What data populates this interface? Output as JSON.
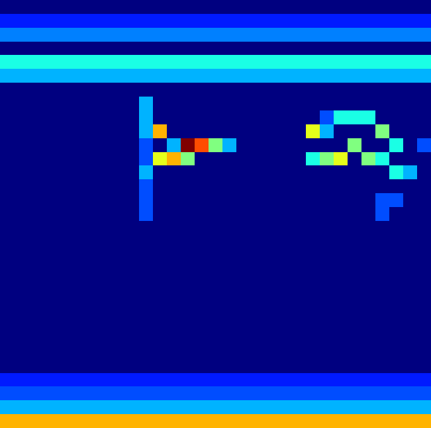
{
  "chart_data": {
    "type": "heatmap",
    "tick_labels": false,
    "xlim": [
      0,
      31
    ],
    "ylim": [
      0,
      31
    ],
    "zlim": [
      0,
      1
    ],
    "cells": [
      [
        0,
        0,
        0,
        0,
        0,
        0,
        0,
        0,
        0,
        0,
        0,
        0,
        0,
        0,
        0,
        0,
        0,
        0,
        0,
        0,
        0,
        0,
        0,
        0,
        0,
        0,
        0,
        0,
        0,
        0,
        0
      ],
      [
        0.15,
        0.15,
        0.15,
        0.15,
        0.15,
        0.15,
        0.15,
        0.15,
        0.15,
        0.15,
        0.15,
        0.15,
        0.15,
        0.15,
        0.15,
        0.15,
        0.15,
        0.15,
        0.15,
        0.15,
        0.15,
        0.15,
        0.15,
        0.15,
        0.15,
        0.15,
        0.15,
        0.15,
        0.15,
        0.15,
        0.15
      ],
      [
        0.25,
        0.25,
        0.25,
        0.25,
        0.25,
        0.25,
        0.25,
        0.25,
        0.25,
        0.25,
        0.25,
        0.25,
        0.25,
        0.25,
        0.25,
        0.25,
        0.25,
        0.25,
        0.25,
        0.25,
        0.25,
        0.25,
        0.25,
        0.25,
        0.25,
        0.25,
        0.25,
        0.25,
        0.25,
        0.25,
        0.25
      ],
      [
        0,
        0,
        0,
        0,
        0,
        0,
        0,
        0,
        0,
        0,
        0,
        0,
        0,
        0,
        0,
        0,
        0,
        0,
        0,
        0,
        0,
        0,
        0,
        0,
        0,
        0,
        0,
        0,
        0,
        0,
        0
      ],
      [
        0.4,
        0.4,
        0.4,
        0.4,
        0.4,
        0.4,
        0.4,
        0.4,
        0.4,
        0.4,
        0.4,
        0.4,
        0.4,
        0.4,
        0.4,
        0.4,
        0.4,
        0.4,
        0.4,
        0.4,
        0.4,
        0.4,
        0.4,
        0.4,
        0.4,
        0.4,
        0.4,
        0.4,
        0.4,
        0.4,
        0.4
      ],
      [
        0.3,
        0.3,
        0.3,
        0.3,
        0.3,
        0.3,
        0.3,
        0.3,
        0.3,
        0.3,
        0.3,
        0.3,
        0.3,
        0.3,
        0.3,
        0.3,
        0.3,
        0.3,
        0.3,
        0.3,
        0.3,
        0.3,
        0.3,
        0.3,
        0.3,
        0.3,
        0.3,
        0.3,
        0.3,
        0.3,
        0.3
      ],
      [
        0,
        0,
        0,
        0,
        0,
        0,
        0,
        0,
        0,
        0,
        0,
        0,
        0,
        0,
        0,
        0,
        0,
        0,
        0,
        0,
        0,
        0,
        0,
        0,
        0,
        0,
        0,
        0,
        0,
        0,
        0
      ],
      [
        0,
        0,
        0,
        0,
        0,
        0,
        0,
        0,
        0,
        0,
        0.3,
        0,
        0,
        0,
        0,
        0,
        0,
        0,
        0,
        0,
        0,
        0,
        0,
        0,
        0,
        0,
        0,
        0,
        0,
        0,
        0
      ],
      [
        0,
        0,
        0,
        0,
        0,
        0,
        0,
        0,
        0,
        0,
        0.3,
        0,
        0,
        0,
        0,
        0,
        0,
        0,
        0,
        0,
        0,
        0,
        0,
        0.2,
        0.4,
        0.4,
        0.4,
        0,
        0,
        0,
        0
      ],
      [
        0,
        0,
        0,
        0,
        0,
        0,
        0,
        0,
        0,
        0,
        0.3,
        0.7,
        0,
        0,
        0,
        0,
        0,
        0,
        0,
        0,
        0,
        0,
        0.6,
        0.3,
        0,
        0,
        0,
        0.5,
        0,
        0,
        0
      ],
      [
        0,
        0,
        0,
        0,
        0,
        0,
        0,
        0,
        0,
        0,
        0.2,
        0,
        0.3,
        1,
        0.8,
        0.5,
        0.3,
        0,
        0,
        0,
        0,
        0,
        0,
        0,
        0,
        0.5,
        0,
        0,
        0.4,
        0,
        0.2
      ],
      [
        0,
        0,
        0,
        0,
        0,
        0,
        0,
        0,
        0,
        0,
        0.2,
        0.6,
        0.7,
        0.5,
        0,
        0,
        0,
        0,
        0,
        0,
        0,
        0,
        0.4,
        0.5,
        0.6,
        0,
        0.5,
        0.4,
        0,
        0,
        0
      ],
      [
        0,
        0,
        0,
        0,
        0,
        0,
        0,
        0,
        0,
        0,
        0.3,
        0,
        0,
        0,
        0,
        0,
        0,
        0,
        0,
        0,
        0,
        0,
        0,
        0,
        0,
        0,
        0,
        0,
        0.4,
        0.3,
        0
      ],
      [
        0,
        0,
        0,
        0,
        0,
        0,
        0,
        0,
        0,
        0,
        0.2,
        0,
        0,
        0,
        0,
        0,
        0,
        0,
        0,
        0,
        0,
        0,
        0,
        0,
        0,
        0,
        0,
        0,
        0,
        0,
        0
      ],
      [
        0,
        0,
        0,
        0,
        0,
        0,
        0,
        0,
        0,
        0,
        0.2,
        0,
        0,
        0,
        0,
        0,
        0,
        0,
        0,
        0,
        0,
        0,
        0,
        0,
        0,
        0,
        0,
        0.2,
        0.2,
        0,
        0
      ],
      [
        0,
        0,
        0,
        0,
        0,
        0,
        0,
        0,
        0,
        0,
        0.2,
        0,
        0,
        0,
        0,
        0,
        0,
        0,
        0,
        0,
        0,
        0,
        0,
        0,
        0,
        0,
        0,
        0.2,
        0,
        0,
        0
      ],
      [
        0,
        0,
        0,
        0,
        0,
        0,
        0,
        0,
        0,
        0,
        0,
        0,
        0,
        0,
        0,
        0,
        0,
        0,
        0,
        0,
        0,
        0,
        0,
        0,
        0,
        0,
        0,
        0,
        0,
        0,
        0
      ],
      [
        0,
        0,
        0,
        0,
        0,
        0,
        0,
        0,
        0,
        0,
        0,
        0,
        0,
        0,
        0,
        0,
        0,
        0,
        0,
        0,
        0,
        0,
        0,
        0,
        0,
        0,
        0,
        0,
        0,
        0,
        0
      ],
      [
        0,
        0,
        0,
        0,
        0,
        0,
        0,
        0,
        0,
        0,
        0,
        0,
        0,
        0,
        0,
        0,
        0,
        0,
        0,
        0,
        0,
        0,
        0,
        0,
        0,
        0,
        0,
        0,
        0,
        0,
        0
      ],
      [
        0,
        0,
        0,
        0,
        0,
        0,
        0,
        0,
        0,
        0,
        0,
        0,
        0,
        0,
        0,
        0,
        0,
        0,
        0,
        0,
        0,
        0,
        0,
        0,
        0,
        0,
        0,
        0,
        0,
        0,
        0
      ],
      [
        0,
        0,
        0,
        0,
        0,
        0,
        0,
        0,
        0,
        0,
        0,
        0,
        0,
        0,
        0,
        0,
        0,
        0,
        0,
        0,
        0,
        0,
        0,
        0,
        0,
        0,
        0,
        0,
        0,
        0,
        0
      ],
      [
        0,
        0,
        0,
        0,
        0,
        0,
        0,
        0,
        0,
        0,
        0,
        0,
        0,
        0,
        0,
        0,
        0,
        0,
        0,
        0,
        0,
        0,
        0,
        0,
        0,
        0,
        0,
        0,
        0,
        0,
        0
      ],
      [
        0,
        0,
        0,
        0,
        0,
        0,
        0,
        0,
        0,
        0,
        0,
        0,
        0,
        0,
        0,
        0,
        0,
        0,
        0,
        0,
        0,
        0,
        0,
        0,
        0,
        0,
        0,
        0,
        0,
        0,
        0
      ],
      [
        0,
        0,
        0,
        0,
        0,
        0,
        0,
        0,
        0,
        0,
        0,
        0,
        0,
        0,
        0,
        0,
        0,
        0,
        0,
        0,
        0,
        0,
        0,
        0,
        0,
        0,
        0,
        0,
        0,
        0,
        0
      ],
      [
        0,
        0,
        0,
        0,
        0,
        0,
        0,
        0,
        0,
        0,
        0,
        0,
        0,
        0,
        0,
        0,
        0,
        0,
        0,
        0,
        0,
        0,
        0,
        0,
        0,
        0,
        0,
        0,
        0,
        0,
        0
      ],
      [
        0,
        0,
        0,
        0,
        0,
        0,
        0,
        0,
        0,
        0,
        0,
        0,
        0,
        0,
        0,
        0,
        0,
        0,
        0,
        0,
        0,
        0,
        0,
        0,
        0,
        0,
        0,
        0,
        0,
        0,
        0
      ],
      [
        0,
        0,
        0,
        0,
        0,
        0,
        0,
        0,
        0,
        0,
        0,
        0,
        0,
        0,
        0,
        0,
        0,
        0,
        0,
        0,
        0,
        0,
        0,
        0,
        0,
        0,
        0,
        0,
        0,
        0,
        0
      ],
      [
        0.15,
        0.15,
        0.15,
        0.15,
        0.15,
        0.15,
        0.15,
        0.15,
        0.15,
        0.15,
        0.15,
        0.15,
        0.15,
        0.15,
        0.15,
        0.15,
        0.15,
        0.15,
        0.15,
        0.15,
        0.15,
        0.15,
        0.15,
        0.15,
        0.15,
        0.15,
        0.15,
        0.15,
        0.15,
        0.15,
        0.15
      ],
      [
        0.2,
        0.2,
        0.2,
        0.2,
        0.2,
        0.2,
        0.2,
        0.2,
        0.2,
        0.2,
        0.2,
        0.2,
        0.2,
        0.2,
        0.2,
        0.2,
        0.2,
        0.2,
        0.2,
        0.2,
        0.2,
        0.2,
        0.2,
        0.2,
        0.2,
        0.2,
        0.2,
        0.2,
        0.2,
        0.2,
        0.2
      ],
      [
        0.3,
        0.3,
        0.3,
        0.3,
        0.3,
        0.3,
        0.3,
        0.3,
        0.3,
        0.3,
        0.3,
        0.3,
        0.3,
        0.3,
        0.3,
        0.3,
        0.3,
        0.3,
        0.3,
        0.3,
        0.3,
        0.3,
        0.3,
        0.3,
        0.3,
        0.3,
        0.3,
        0.3,
        0.3,
        0.3,
        0.3
      ],
      [
        0.7,
        0.7,
        0.7,
        0.7,
        0.7,
        0.7,
        0.7,
        0.7,
        0.7,
        0.7,
        0.7,
        0.7,
        0.7,
        0.7,
        0.7,
        0.7,
        0.7,
        0.7,
        0.7,
        0.7,
        0.7,
        0.7,
        0.7,
        0.7,
        0.7,
        0.7,
        0.7,
        0.7,
        0.7,
        0.7,
        0.7
      ]
    ]
  }
}
